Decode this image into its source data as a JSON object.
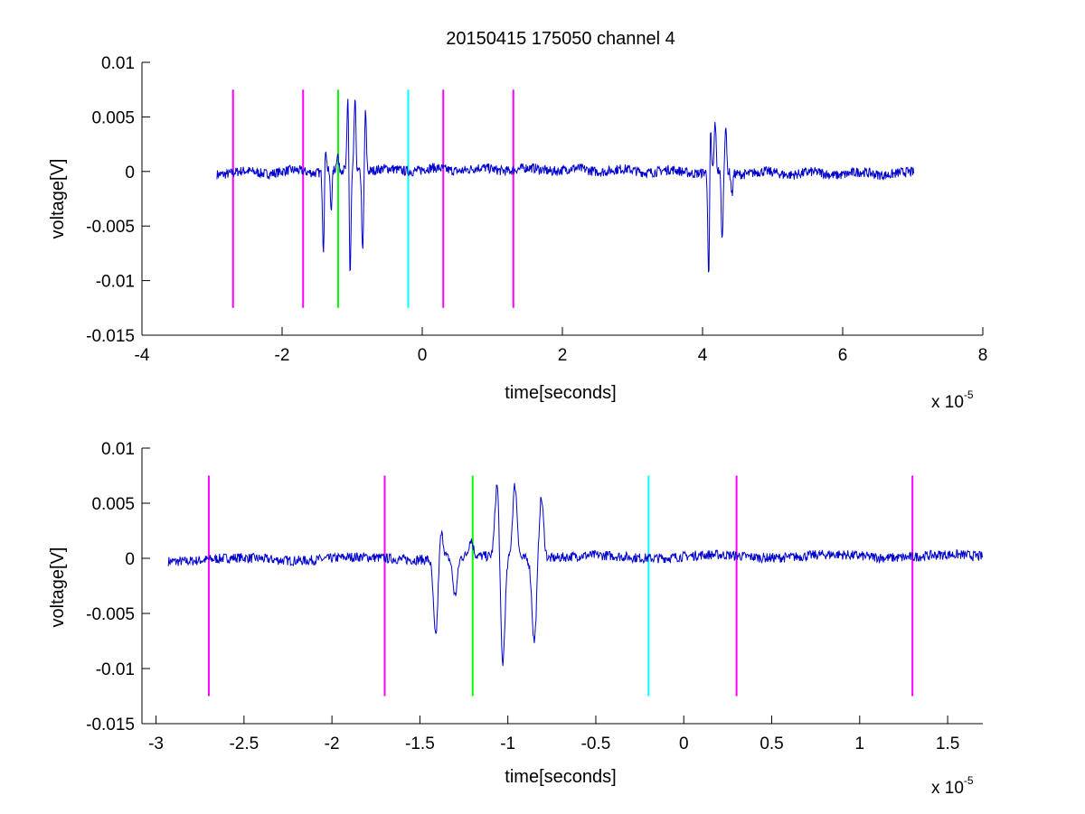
{
  "figure": {
    "title": "20150415 175050 channel 4"
  },
  "chart_data": [
    {
      "type": "line",
      "xlabel": "time[seconds]",
      "ylabel": "voltage[V]",
      "x_exponent_label": "x 10",
      "x_exponent": "-5",
      "xlim": [
        -4,
        8
      ],
      "ylim": [
        -0.015,
        0.01
      ],
      "x_ticks": [
        "-4",
        "-2",
        "0",
        "2",
        "4",
        "6",
        "8"
      ],
      "x_tick_values": [
        -4,
        -2,
        0,
        2,
        4,
        6,
        8
      ],
      "y_ticks": [
        "0.01",
        "0.005",
        "0",
        "-0.005",
        "-0.01",
        "-0.015"
      ],
      "y_tick_values": [
        0.01,
        0.005,
        0,
        -0.005,
        -0.01,
        -0.015
      ],
      "grid": false,
      "series": [
        {
          "color": "#0000cc",
          "x_start": -2.93,
          "x_end": 7.02,
          "bursts": [
            {
              "x": -1.41,
              "amp": -0.0072
            },
            {
              "x": -1.38,
              "amp": 0.0025
            },
            {
              "x": -1.3,
              "amp": -0.0035
            },
            {
              "x": -1.21,
              "amp": 0.0015
            },
            {
              "x": -1.06,
              "amp": 0.007
            },
            {
              "x": -1.03,
              "amp": -0.01
            },
            {
              "x": -0.96,
              "amp": 0.0066
            },
            {
              "x": -0.85,
              "amp": -0.0075
            },
            {
              "x": -0.81,
              "amp": 0.0055
            },
            {
              "x": 4.09,
              "amp": -0.0113
            },
            {
              "x": 4.11,
              "amp": 0.0055
            },
            {
              "x": 4.18,
              "amp": 0.0045
            },
            {
              "x": 4.28,
              "amp": -0.0065
            },
            {
              "x": 4.33,
              "amp": 0.0042
            },
            {
              "x": 4.42,
              "amp": -0.002
            }
          ]
        }
      ],
      "markers": [
        {
          "x": -2.7,
          "color": "#ff00ff"
        },
        {
          "x": -1.7,
          "color": "#ff00ff"
        },
        {
          "x": -1.2,
          "color": "#00ff00"
        },
        {
          "x": -0.2,
          "color": "#00ffff"
        },
        {
          "x": 0.3,
          "color": "#ff00ff"
        },
        {
          "x": 1.3,
          "color": "#ff00ff"
        }
      ],
      "marker_range": [
        -0.0125,
        0.0075
      ]
    },
    {
      "type": "line",
      "xlabel": "time[seconds]",
      "ylabel": "voltage[V]",
      "x_exponent_label": "x 10",
      "x_exponent": "-5",
      "xlim": [
        -3.08,
        1.7
      ],
      "ylim": [
        -0.015,
        0.01
      ],
      "x_ticks": [
        "-3",
        "-2.5",
        "-2",
        "-1.5",
        "-1",
        "-0.5",
        "0",
        "0.5",
        "1",
        "1.5"
      ],
      "x_tick_values": [
        -3,
        -2.5,
        -2,
        -1.5,
        -1,
        -0.5,
        0,
        0.5,
        1,
        1.5
      ],
      "y_ticks": [
        "0.01",
        "0.005",
        "0",
        "-0.005",
        "-0.01",
        "-0.015"
      ],
      "y_tick_values": [
        0.01,
        0.005,
        0,
        -0.005,
        -0.01,
        -0.015
      ],
      "grid": false,
      "series": [
        {
          "color": "#0000cc",
          "x_start": -2.93,
          "x_end": 1.7,
          "bursts": [
            {
              "x": -1.41,
              "amp": -0.0072
            },
            {
              "x": -1.38,
              "amp": 0.0025
            },
            {
              "x": -1.3,
              "amp": -0.0035
            },
            {
              "x": -1.21,
              "amp": 0.0015
            },
            {
              "x": -1.06,
              "amp": 0.007
            },
            {
              "x": -1.03,
              "amp": -0.01
            },
            {
              "x": -0.96,
              "amp": 0.0066
            },
            {
              "x": -0.85,
              "amp": -0.0075
            },
            {
              "x": -0.81,
              "amp": 0.0055
            }
          ]
        }
      ],
      "markers": [
        {
          "x": -2.7,
          "color": "#ff00ff"
        },
        {
          "x": -1.7,
          "color": "#ff00ff"
        },
        {
          "x": -1.2,
          "color": "#00ff00"
        },
        {
          "x": -0.2,
          "color": "#00ffff"
        },
        {
          "x": 0.3,
          "color": "#ff00ff"
        },
        {
          "x": 1.3,
          "color": "#ff00ff"
        }
      ],
      "marker_range": [
        -0.0125,
        0.0075
      ]
    }
  ]
}
